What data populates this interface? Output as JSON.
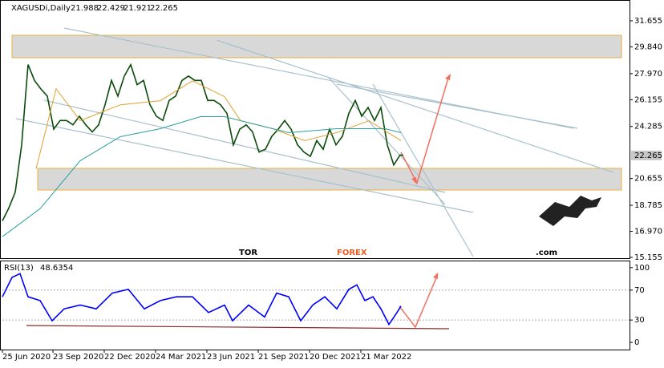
{
  "chart_data": [
    {
      "type": "line",
      "title": "XAGUSDi,Daily",
      "ohlc": [
        21.988,
        22.429,
        21.921,
        22.265
      ],
      "xlim": [
        0,
        782
      ],
      "xticks": [
        {
          "value": 0,
          "label": "25 Jun 2020"
        },
        {
          "value": 63,
          "label": "23 Sep 2020"
        },
        {
          "value": 127,
          "label": "22 Dec 2020"
        },
        {
          "value": 191,
          "label": "24 Mar 2021"
        },
        {
          "value": 255,
          "label": "23 Jun 2021"
        },
        {
          "value": 319,
          "label": "21 Sep 2021"
        },
        {
          "value": 383,
          "label": "20 Dec 2021"
        },
        {
          "value": 447,
          "label": "21 Mar 2022"
        }
      ],
      "ylim": [
        15.1,
        33.05
      ],
      "yticks": [
        15.155,
        {
          "value": 16.97,
          "label": "16.970"
        },
        18.785,
        20.655,
        24.285,
        26.155,
        {
          "value": 27.97,
          "label": "27.970"
        },
        {
          "value": 29.84,
          "label": "29.840"
        },
        31.655
      ],
      "series": [
        {
          "color": "#0a4a0a",
          "x": [
            0,
            8,
            16,
            24,
            32,
            40,
            48,
            56,
            64,
            72,
            80,
            88,
            96,
            104,
            112,
            120,
            128,
            136,
            144,
            152,
            160,
            168,
            176,
            184,
            192,
            200,
            208,
            216,
            224,
            232,
            240,
            248,
            256,
            264,
            272,
            280,
            288,
            296,
            304,
            312,
            320,
            328,
            336,
            344,
            352,
            360,
            368,
            376,
            384,
            392,
            400,
            408,
            416,
            424,
            432,
            440,
            448,
            456,
            464,
            472,
            480,
            488,
            496,
            500
          ],
          "values": [
            17.7,
            18.6,
            19.7,
            23.0,
            28.6,
            27.5,
            26.9,
            26.4,
            24.1,
            24.7,
            24.7,
            24.4,
            25.0,
            24.4,
            23.9,
            24.4,
            25.8,
            27.5,
            26.4,
            27.8,
            28.6,
            27.2,
            27.5,
            25.8,
            25.0,
            24.7,
            26.1,
            26.4,
            27.5,
            27.8,
            27.5,
            27.5,
            26.1,
            26.1,
            25.8,
            25.2,
            23.0,
            24.1,
            24.4,
            23.9,
            22.5,
            22.7,
            23.6,
            24.1,
            24.7,
            24.1,
            23.0,
            22.5,
            22.2,
            23.3,
            22.7,
            24.1,
            23.0,
            23.6,
            25.2,
            26.1,
            25.0,
            25.6,
            24.7,
            25.6,
            23.0,
            21.6,
            22.3,
            22.265
          ]
        },
        {
          "color": "#e0a030",
          "x": [
            42,
            67,
            97,
            147,
            197,
            237,
            277,
            297,
            337,
            377,
            417,
            457,
            497
          ],
          "values": [
            21.34,
            26.92,
            24.69,
            25.8,
            26.08,
            27.47,
            26.36,
            24.69,
            24.13,
            23.3,
            23.86,
            24.69,
            23.3
          ]
        },
        {
          "color": "#2aa0a0",
          "x": [
            0,
            47,
            97,
            147,
            197,
            247,
            277,
            317,
            357,
            417,
            477,
            497
          ],
          "values": [
            16.6,
            18.55,
            21.9,
            23.57,
            24.13,
            24.97,
            24.97,
            24.41,
            23.85,
            24.13,
            24.13,
            23.85
          ]
        }
      ]
    },
    {
      "type": "line",
      "title": "RSI(13)",
      "last": 48.6354,
      "xlim": [
        0,
        782
      ],
      "ylim": [
        -9.5,
        108.4
      ],
      "yticks": [
        0,
        30,
        70,
        100
      ],
      "series": [
        {
          "color": "#0000ff",
          "x": [
            0,
            12,
            22,
            32,
            47,
            62,
            77,
            97,
            117,
            137,
            157,
            177,
            197,
            217,
            237,
            257,
            277,
            287,
            307,
            327,
            342,
            357,
            372,
            387,
            402,
            417,
            432,
            442,
            452,
            462,
            472,
            482,
            492,
            497
          ],
          "values": [
            61,
            87,
            92,
            61,
            56,
            29,
            45,
            50,
            45,
            66,
            71,
            45,
            56,
            61,
            61,
            40,
            50,
            29,
            50,
            34,
            66,
            61,
            29,
            50,
            61,
            45,
            71,
            77,
            56,
            61,
            45,
            24,
            40,
            48.6354
          ]
        }
      ]
    }
  ],
  "logo": {
    "part1": "TOR",
    "part2": "FOREX",
    "part3": ".com"
  }
}
